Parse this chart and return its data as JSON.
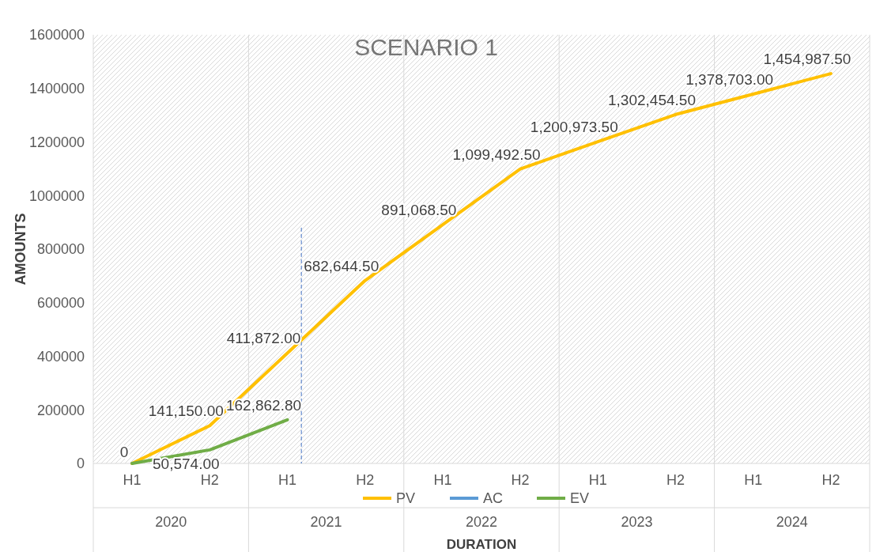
{
  "chart_data": {
    "type": "line",
    "title": "SCENARIO 1",
    "xlabel": "DURATION",
    "ylabel": "AMOUNTS",
    "categories": [
      "H1",
      "H2",
      "H1",
      "H2",
      "H1",
      "H2",
      "H1",
      "H2",
      "H1",
      "H2"
    ],
    "annotations": [
      "2020",
      "2021",
      "2022",
      "2023",
      "2024"
    ],
    "ylim": [
      0,
      1600000
    ],
    "yticks": [
      0,
      200000,
      400000,
      600000,
      800000,
      1000000,
      1200000,
      1400000,
      1600000
    ],
    "grid": false,
    "legend": "bottom",
    "marker": "none",
    "line_style": "solid",
    "series": [
      {
        "name": "PV",
        "color": "#ffc000",
        "values": [
          0,
          141150,
          411872,
          682644.5,
          891068.5,
          1099492.5,
          1200973.5,
          1302454.5,
          1378703,
          1454987.5
        ],
        "value_labels": [
          "0",
          "141,150.00",
          "411,872.00",
          "682,644.50",
          "891,068.50",
          "1,099,492.50",
          "1,200,973.50",
          "1,302,454.50",
          "1,378,703.00",
          "1,454,987.50"
        ]
      },
      {
        "name": "AC",
        "color": "#5b9bd5",
        "values": [
          null,
          null,
          null,
          null,
          null,
          null,
          null,
          null,
          null,
          null
        ]
      },
      {
        "name": "EV",
        "color": "#70ad47",
        "values": [
          0,
          50574,
          162862.8,
          null,
          null,
          null,
          null,
          null,
          null,
          null
        ],
        "value_labels": [
          "0",
          "50,574.00",
          "162,862.80",
          null,
          null,
          null,
          null,
          null,
          null,
          null
        ]
      }
    ]
  }
}
